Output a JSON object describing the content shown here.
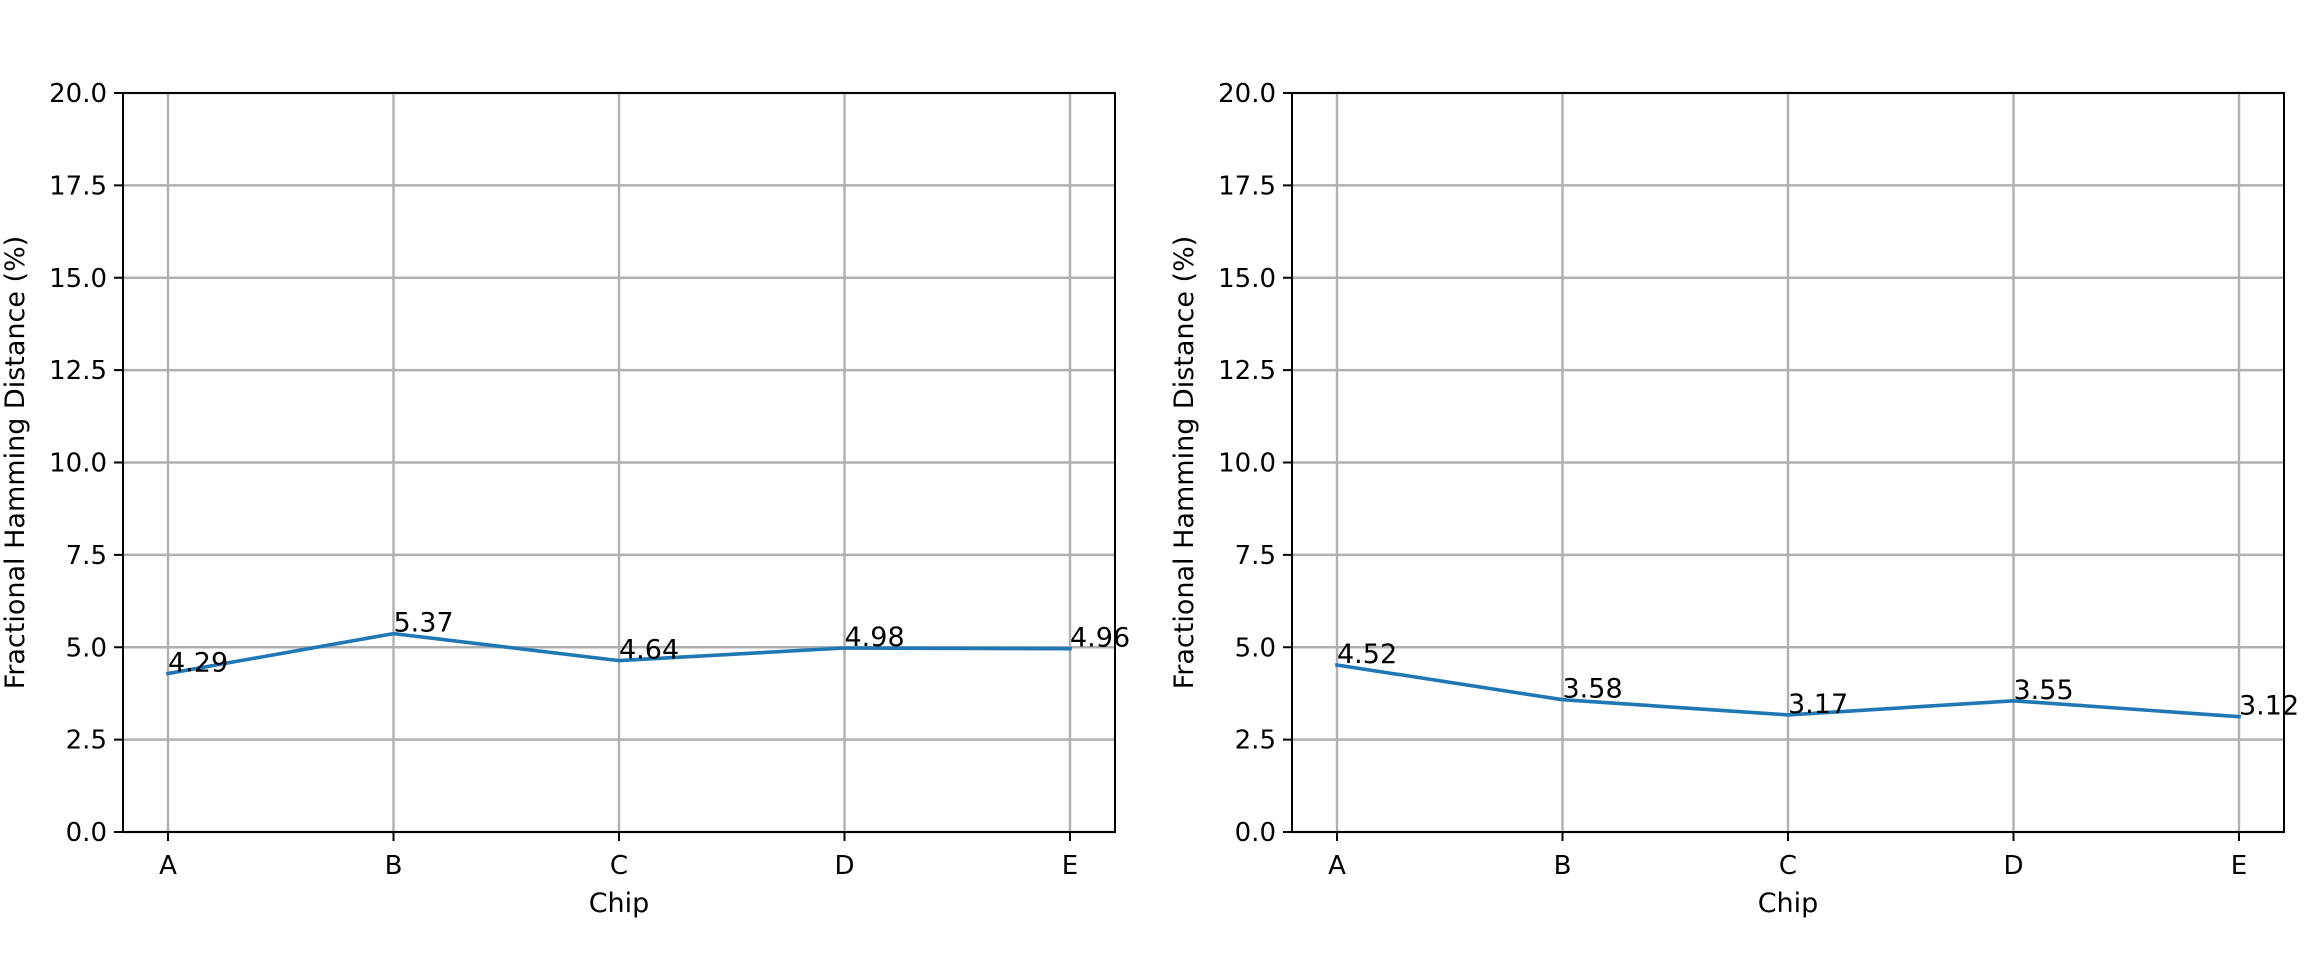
{
  "chart_data": [
    {
      "type": "line",
      "title": "",
      "xlabel": "Chip",
      "ylabel": "Fractional Hamming Distance (%)",
      "categories": [
        "A",
        "B",
        "C",
        "D",
        "E"
      ],
      "series": [
        {
          "values": [
            4.29,
            5.37,
            4.64,
            4.98,
            4.96
          ],
          "color": "#1f77b4"
        }
      ],
      "data_labels": [
        "4.29",
        "5.37",
        "4.64",
        "4.98",
        "4.96"
      ],
      "ylim": [
        0,
        20
      ],
      "yticks": [
        0,
        2.5,
        5,
        7.5,
        10,
        12.5,
        15,
        17.5,
        20
      ],
      "ytick_labels": [
        "0.0",
        "2.5",
        "5.0",
        "7.5",
        "10.0",
        "12.5",
        "15.0",
        "17.5",
        "20.0"
      ],
      "grid": true,
      "legend": "none"
    },
    {
      "type": "line",
      "title": "",
      "xlabel": "Chip",
      "ylabel": "Fractional Hamming Distance (%)",
      "categories": [
        "A",
        "B",
        "C",
        "D",
        "E"
      ],
      "series": [
        {
          "values": [
            4.52,
            3.58,
            3.17,
            3.55,
            3.12
          ],
          "color": "#1f77b4"
        }
      ],
      "data_labels": [
        "4.52",
        "3.58",
        "3.17",
        "3.55",
        "3.12"
      ],
      "ylim": [
        0,
        20
      ],
      "yticks": [
        0,
        2.5,
        5,
        7.5,
        10,
        12.5,
        15,
        17.5,
        20
      ],
      "ytick_labels": [
        "0.0",
        "2.5",
        "5.0",
        "7.5",
        "10.0",
        "12.5",
        "15.0",
        "17.5",
        "20.0"
      ],
      "grid": true,
      "legend": "none"
    }
  ]
}
